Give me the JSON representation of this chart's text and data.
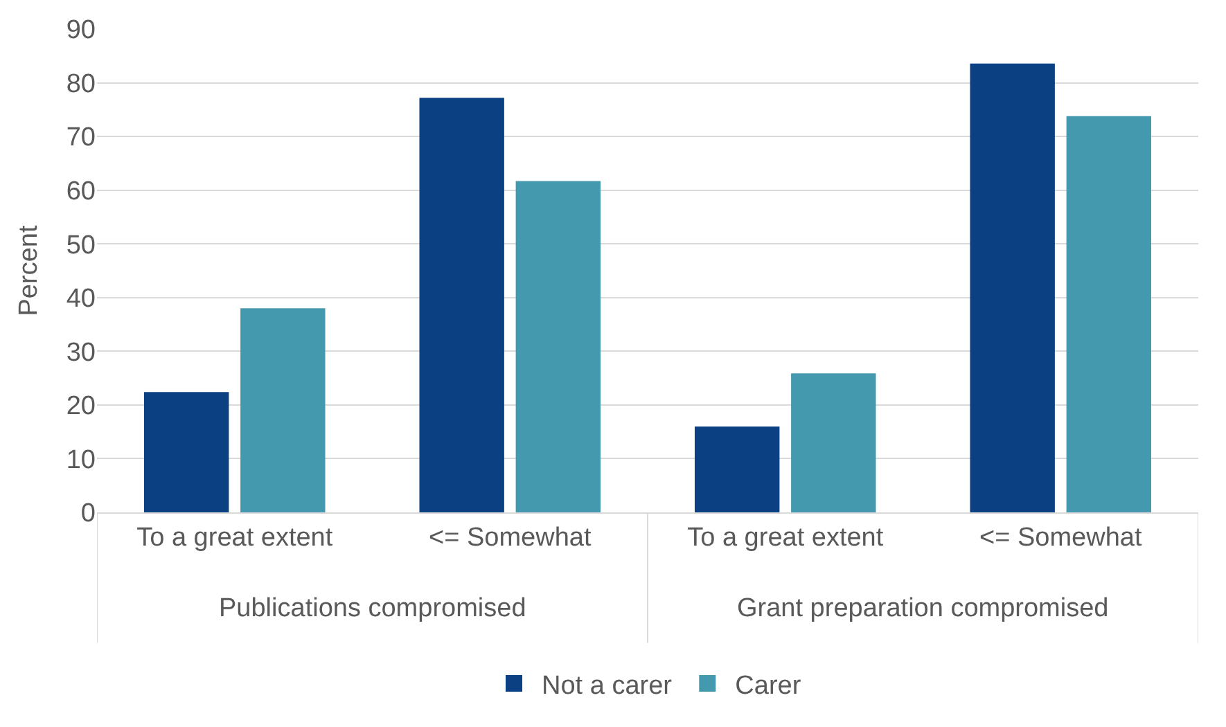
{
  "chart_data": {
    "type": "bar",
    "ylabel": "Percent",
    "categories": [
      "To a great extent",
      "<= Somewhat",
      "To a great extent",
      "<= Somewhat"
    ],
    "series": [
      {
        "name": "Not a carer",
        "color": "#0b4182",
        "values": [
          22.4,
          77.2,
          16.0,
          83.6
        ]
      },
      {
        "name": "Carer",
        "color": "#4599ae",
        "values": [
          38.0,
          61.7,
          25.9,
          73.8
        ]
      }
    ],
    "annotations": [
      "Publications compromised",
      "Grant preparation compromised"
    ],
    "ylim": [
      0,
      90
    ],
    "yticks": [
      0,
      10,
      20,
      30,
      40,
      50,
      60,
      70,
      80,
      90
    ],
    "grid": "y",
    "legend": "bottom"
  }
}
